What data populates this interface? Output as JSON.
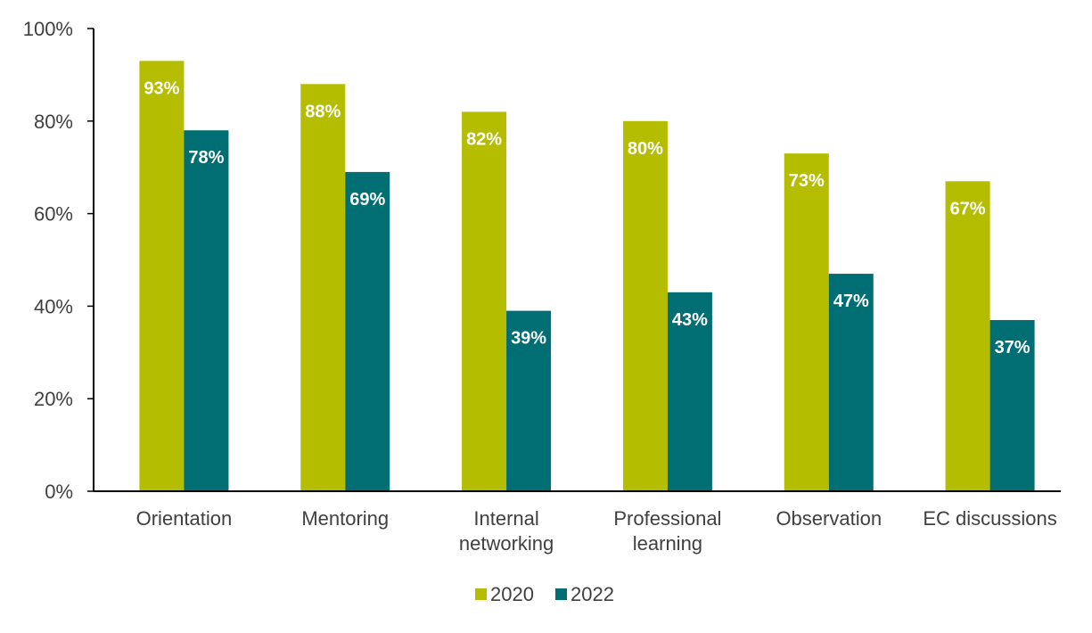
{
  "chart_data": {
    "type": "bar",
    "categories": [
      [
        "Orientation"
      ],
      [
        "Mentoring"
      ],
      [
        "Internal",
        "networking"
      ],
      [
        "Professional",
        "learning"
      ],
      [
        "Observation"
      ],
      [
        "EC discussions"
      ]
    ],
    "series": [
      {
        "name": "2020",
        "color": "#b5bd00",
        "values": [
          93,
          88,
          82,
          80,
          73,
          67
        ],
        "labels": [
          "93%",
          "88%",
          "82%",
          "80%",
          "73%",
          "67%"
        ]
      },
      {
        "name": "2022",
        "color": "#006e73",
        "values": [
          78,
          69,
          39,
          43,
          47,
          37
        ],
        "labels": [
          "78%",
          "69%",
          "39%",
          "43%",
          "47%",
          "37%"
        ]
      }
    ],
    "ylim": [
      0,
      100
    ],
    "yticks": [
      0,
      20,
      40,
      60,
      80,
      100
    ],
    "ytick_labels": [
      "0%",
      "20%",
      "40%",
      "60%",
      "80%",
      "100%"
    ],
    "grid": false,
    "legend": "bottom-center"
  }
}
